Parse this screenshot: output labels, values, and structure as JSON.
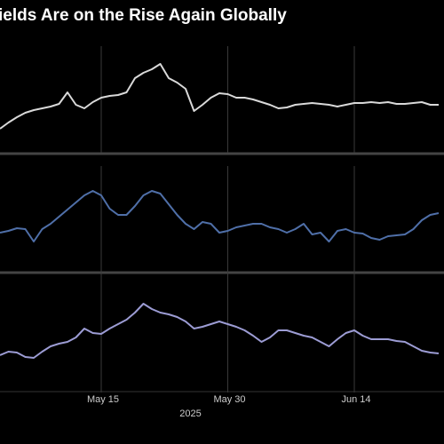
{
  "chart_data": {
    "type": "line",
    "title": "Yields Are on the Rise Again Globally",
    "categories": [
      null,
      null,
      null,
      null,
      null,
      null,
      null,
      null,
      null,
      null,
      null,
      null,
      "May 15",
      null,
      null,
      null,
      null,
      null,
      null,
      null,
      null,
      null,
      null,
      null,
      null,
      null,
      null,
      "May 30",
      null,
      null,
      null,
      null,
      null,
      null,
      null,
      null,
      null,
      null,
      null,
      null,
      null,
      null,
      "Jun 14",
      null,
      null,
      null,
      null,
      null,
      null,
      null,
      null,
      null,
      null
    ],
    "xlabel": "2025",
    "grid": true,
    "series": [
      {
        "color": "#d9d9d9",
        "ylim": [
          0,
          110
        ],
        "values": [
          25,
          32,
          38,
          43,
          46,
          48,
          50,
          53,
          66,
          52,
          48,
          55,
          60,
          62,
          63,
          66,
          82,
          88,
          92,
          98,
          82,
          77,
          70,
          45,
          52,
          60,
          65,
          64,
          60,
          60,
          58,
          55,
          52,
          48,
          49,
          52,
          53,
          54,
          53,
          52,
          50,
          52,
          54,
          54,
          55,
          54,
          55,
          53,
          53,
          54,
          55,
          52,
          52
        ]
      },
      {
        "color": "#4f6fa8",
        "ylim": [
          0,
          110
        ],
        "values": [
          43,
          45,
          48,
          47,
          33,
          47,
          53,
          61,
          69,
          77,
          85,
          90,
          85,
          70,
          63,
          63,
          73,
          85,
          90,
          87,
          75,
          63,
          53,
          47,
          55,
          53,
          43,
          45,
          49,
          51,
          53,
          53,
          49,
          47,
          43,
          47,
          53,
          41,
          43,
          33,
          45,
          47,
          43,
          42,
          37,
          35,
          39,
          40,
          41,
          47,
          57,
          63,
          65
        ]
      },
      {
        "color": "#9c9cd4",
        "ylim": [
          0,
          130
        ],
        "values": [
          40,
          44,
          43,
          38,
          37,
          44,
          50,
          53,
          55,
          60,
          70,
          65,
          64,
          70,
          75,
          80,
          88,
          98,
          92,
          88,
          86,
          83,
          78,
          70,
          72,
          75,
          78,
          75,
          72,
          68,
          62,
          55,
          60,
          68,
          68,
          65,
          62,
          60,
          55,
          50,
          58,
          65,
          68,
          62,
          58,
          58,
          58,
          56,
          55,
          50,
          45,
          43,
          42
        ]
      }
    ]
  }
}
